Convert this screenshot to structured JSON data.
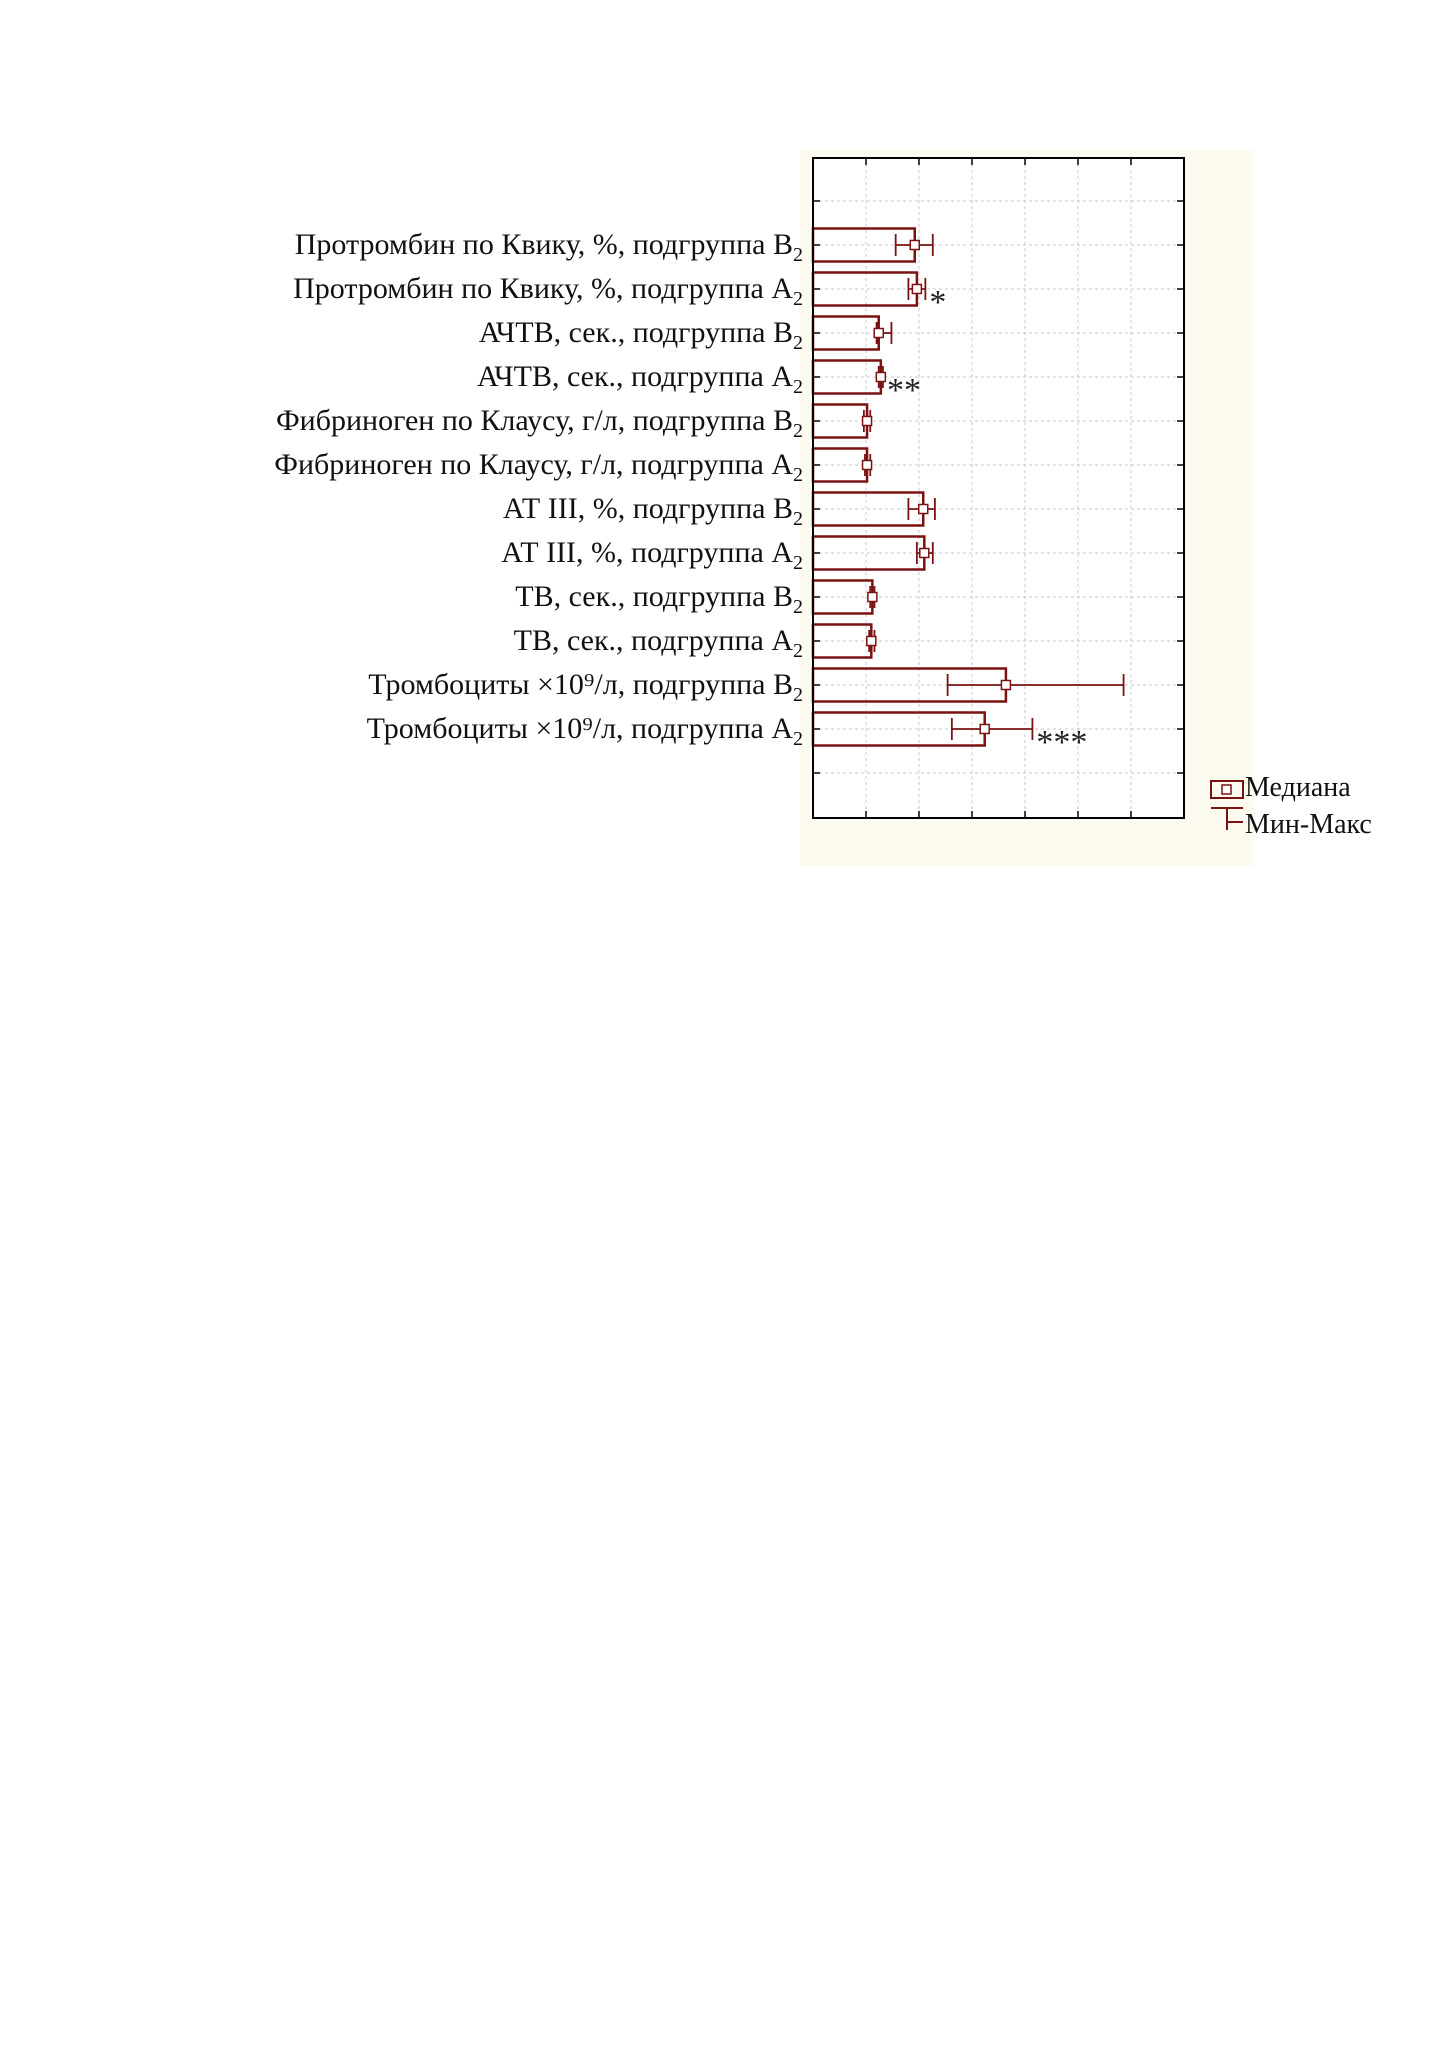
{
  "chart_data": {
    "type": "bar",
    "orientation": "horizontal",
    "categories": [
      {
        "text": "Протромбин  по Квику, %, подгруппа B",
        "sub": "2"
      },
      {
        "text": "Протромбин  по Квику, %, подгруппа A",
        "sub": "2"
      },
      {
        "text": "АЧТВ, сек.,  подгруппа B",
        "sub": "2"
      },
      {
        "text": "АЧТВ, сек.,  подгруппа A",
        "sub": "2"
      },
      {
        "text": "Фибриноген по Клаусу,  г/л, подгруппа B",
        "sub": "2"
      },
      {
        "text": "Фибриноген по Клаусу,  г/л, подгруппа A",
        "sub": "2"
      },
      {
        "text": "АТ III, %, подгруппа B",
        "sub": "2"
      },
      {
        "text": "АТ III, %, подгруппа A",
        "sub": "2"
      },
      {
        "text": "ТВ, сек., подгруппа B",
        "sub": "2"
      },
      {
        "text": "ТВ, сек., подгруппа A",
        "sub": "2"
      },
      {
        "text": "Тромбоциты ×10⁹/л,  подгруппа B",
        "sub": "2"
      },
      {
        "text": "Тромбоциты ×10⁹/л,  подгруппа A",
        "sub": "2"
      }
    ],
    "series": [
      {
        "name": "Медиана",
        "values": [
          96,
          98,
          62,
          64,
          51,
          51,
          104,
          105,
          56,
          55,
          182,
          162
        ]
      },
      {
        "name": "Мин-Макс",
        "min": [
          78,
          90,
          60,
          62,
          48,
          49,
          90,
          98,
          54,
          53,
          127,
          131
        ],
        "max": [
          113,
          106,
          74,
          66,
          54,
          54,
          115,
          113,
          58,
          58,
          293,
          207
        ]
      }
    ],
    "significance": [
      "",
      "*",
      "",
      "**",
      "",
      "",
      "",
      "",
      "",
      "",
      "",
      "***"
    ],
    "xlim": [
      0,
      350
    ],
    "xticks": [
      0,
      50,
      100,
      150,
      200,
      250,
      300,
      350
    ],
    "show_tick_labels": false,
    "grid": true,
    "legend": {
      "position": "bottom-right",
      "items": [
        {
          "icon": "median-box-icon",
          "label": "Медиана"
        },
        {
          "icon": "min-max-whisker-icon",
          "label": "Мин-Макс"
        }
      ]
    },
    "colors": {
      "bar": "#7a1212",
      "grid": "#c8c8c8",
      "axis": "#000000",
      "panel": "#fdfaf0"
    }
  }
}
